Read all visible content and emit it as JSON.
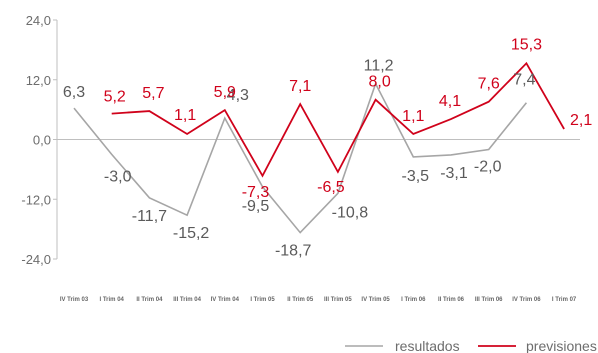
{
  "chart_data": {
    "type": "line",
    "categories": [
      "IV Trim 03",
      "I Trim 04",
      "II Trim 04",
      "III Trim 04",
      "IV Trim 04",
      "I Trim 05",
      "II Trim 05",
      "III Trim 05",
      "IV Trim 05",
      "I Trim 06",
      "II Trim 06",
      "III Trim 06",
      "IV Trim 06",
      "I Trim 07"
    ],
    "yticks": [
      "24,0",
      "12,0",
      "0,0",
      "-12,0",
      "-24,0"
    ],
    "ylim": [
      -24,
      24
    ],
    "grid": false,
    "legend_position": "bottom-right",
    "colors": {
      "resultados": "#a6a6a6",
      "previsiones": "#d0021b",
      "axis": "#bfbfbf"
    },
    "series": [
      {
        "name": "resultados",
        "values": [
          6.3,
          -3.0,
          -11.7,
          -15.2,
          4.3,
          -9.5,
          -18.7,
          -10.8,
          11.2,
          -3.5,
          -3.1,
          -2.0,
          7.4,
          null
        ],
        "labels": [
          "6,3",
          "-3,0",
          "-11,7",
          "-15,2",
          "4,3",
          "-9,5",
          "-18,7",
          "-10,8",
          "11,2",
          "-3,5",
          "-3,1",
          "-2,0",
          "7,4",
          ""
        ]
      },
      {
        "name": "previsiones",
        "values": [
          null,
          5.2,
          5.7,
          1.1,
          5.9,
          -7.3,
          7.1,
          -6.5,
          8.0,
          1.1,
          4.1,
          7.6,
          15.3,
          2.1
        ],
        "labels": [
          "",
          "5,2",
          "5,7",
          "1,1",
          "5,9",
          "-7,3",
          "7,1",
          "-6,5",
          "8,0",
          "1,1",
          "4,1",
          "7,6",
          "15,3",
          "2,1"
        ]
      }
    ]
  }
}
